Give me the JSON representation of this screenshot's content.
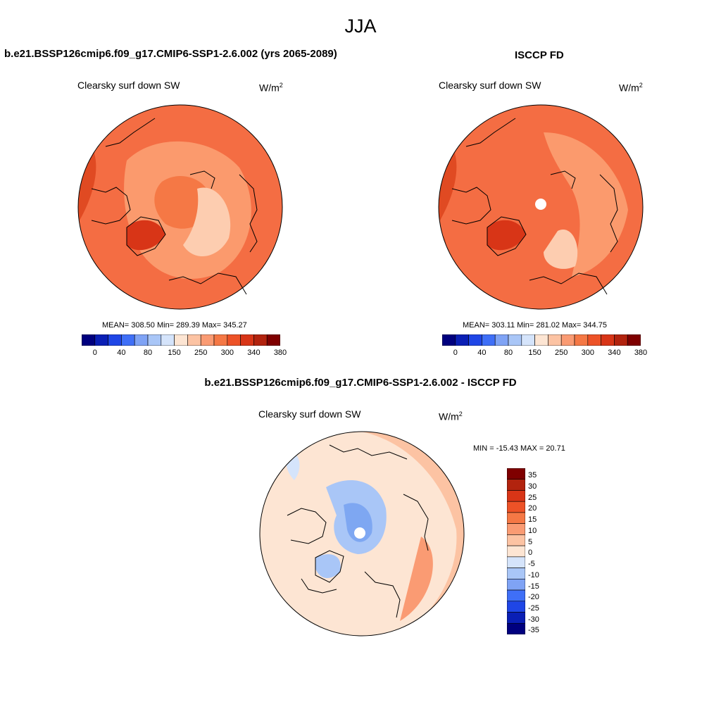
{
  "season": "JJA",
  "colors": {
    "ocean_warm_dark": "#d93a16",
    "map_base": "#f46d43",
    "map_light": "#fb9a6d",
    "map_pale": "#fdcdb0",
    "diff_pale": "#fde5d3",
    "diff_blue": "#a9c6f7",
    "diff_blue_dark": "#7ea7f2"
  },
  "panels": [
    {
      "title": "b.e21.BSSP126cmip6.f09_g17.CMIP6-SSP1-2.6.002 (yrs 2065-2089)",
      "variable": "Clearsky surf down SW",
      "units": "W/m",
      "units_sup": "2",
      "stats": "MEAN= 308.50  Min= 289.39  Max= 345.27"
    },
    {
      "title": "ISCCP FD",
      "variable": "Clearsky surf down SW",
      "units": "W/m",
      "units_sup": "2",
      "stats": "MEAN= 303.11  Min= 281.02  Max= 344.75"
    },
    {
      "title": "b.e21.BSSP126cmip6.f09_g17.CMIP6-SSP1-2.6.002 - ISCCP FD",
      "variable": "Clearsky surf down SW",
      "units": "W/m",
      "units_sup": "2",
      "stats": "MIN = -15.43 MAX =  20.71"
    }
  ],
  "colorbar_horizontal": {
    "colors": [
      "#00007f",
      "#0a1fb5",
      "#1f46e6",
      "#3f6ff7",
      "#7fa3f5",
      "#a9c6f7",
      "#d5e4fb",
      "#fde5d3",
      "#fcc3a3",
      "#fa9b73",
      "#f57845",
      "#ed5227",
      "#d83517",
      "#b2230e",
      "#7f0000"
    ],
    "tick_labels": [
      "0",
      "40",
      "80",
      "150",
      "250",
      "300",
      "340",
      "380"
    ]
  },
  "colorbar_vertical": {
    "colors": [
      "#7f0000",
      "#b2230e",
      "#d83517",
      "#ed5227",
      "#f57845",
      "#fa9b73",
      "#fcc3a3",
      "#fde5d3",
      "#d5e4fb",
      "#a9c6f7",
      "#7fa3f5",
      "#3f6ff7",
      "#1f46e6",
      "#0a1fb5",
      "#00007f"
    ],
    "tick_labels": [
      "35",
      "30",
      "25",
      "20",
      "15",
      "10",
      "5",
      "0",
      "-5",
      "-10",
      "-15",
      "-20",
      "-25",
      "-30",
      "-35"
    ]
  }
}
